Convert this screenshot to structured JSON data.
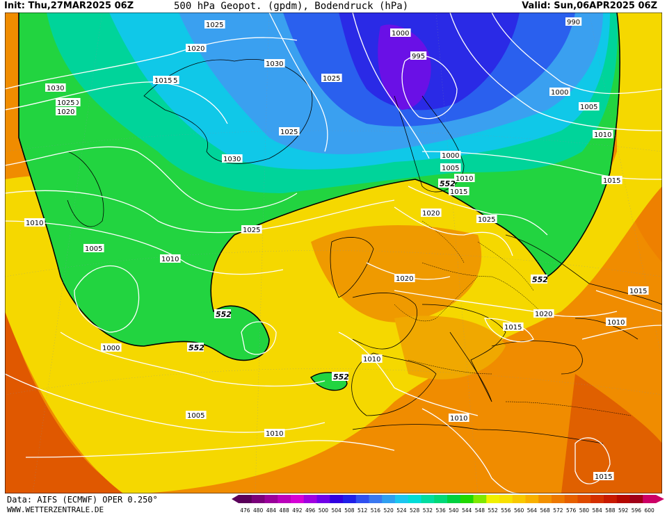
{
  "header": {
    "init": "Init: Thu,27MAR2025 06Z",
    "title": "500 hPa Geopot. (gpdm), Bodendruck (hPa)",
    "valid": "Valid: Sun,06APR2025 06Z"
  },
  "footer": {
    "data_source": "Data: AIFS (ECMWF) OPER 0.250°",
    "website": "WWW.WETTERZENTRALE.DE"
  },
  "legend": {
    "values": [
      "476",
      "480",
      "484",
      "488",
      "492",
      "496",
      "500",
      "504",
      "508",
      "512",
      "516",
      "520",
      "524",
      "528",
      "532",
      "536",
      "540",
      "544",
      "548",
      "552",
      "556",
      "560",
      "564",
      "568",
      "572",
      "576",
      "580",
      "584",
      "588",
      "592",
      "596",
      "600"
    ],
    "colors": [
      "#5a005a",
      "#7a007a",
      "#9a009a",
      "#bb00bb",
      "#d600d6",
      "#a000e0",
      "#7000e8",
      "#3000e0",
      "#2020e8",
      "#3050f0",
      "#3a78f0",
      "#2f9ff0",
      "#1cc6f0",
      "#00dcd8",
      "#00dca0",
      "#00d878",
      "#00d040",
      "#20d800",
      "#80e800",
      "#f0f000",
      "#f8e000",
      "#f8c800",
      "#f8b000",
      "#f29000",
      "#ec7800",
      "#e66000",
      "#de4a00",
      "#d43000",
      "#c81a00",
      "#b40800",
      "#a00018",
      "#cc0066"
    ]
  },
  "isobar_labels": [
    {
      "text": "1025"
    },
    {
      "text": "1020"
    },
    {
      "text": "1015"
    },
    {
      "text": "1030"
    },
    {
      "text": "1025"
    },
    {
      "text": "1020"
    },
    {
      "text": "1015"
    },
    {
      "text": "1030"
    },
    {
      "text": "1025"
    },
    {
      "text": "1025"
    },
    {
      "text": "1030"
    },
    {
      "text": "1020"
    },
    {
      "text": "1025"
    },
    {
      "text": "1000"
    },
    {
      "text": "995"
    },
    {
      "text": "990"
    },
    {
      "text": "1000"
    },
    {
      "text": "1005"
    },
    {
      "text": "1010"
    },
    {
      "text": "1000"
    },
    {
      "text": "1005"
    },
    {
      "text": "1010"
    },
    {
      "text": "1015"
    },
    {
      "text": "1015"
    },
    {
      "text": "1020"
    },
    {
      "text": "1025"
    },
    {
      "text": "1010"
    },
    {
      "text": "1005"
    },
    {
      "text": "1010"
    },
    {
      "text": "1020"
    },
    {
      "text": "1015"
    },
    {
      "text": "1020"
    },
    {
      "text": "1015"
    },
    {
      "text": "1010"
    },
    {
      "text": "1000"
    },
    {
      "text": "1010"
    },
    {
      "text": "1005"
    },
    {
      "text": "1010"
    },
    {
      "text": "1010"
    },
    {
      "text": "1015"
    }
  ],
  "height_labels": [
    {
      "text": "552"
    },
    {
      "text": "552"
    },
    {
      "text": "552"
    },
    {
      "text": "552"
    },
    {
      "text": "552"
    }
  ]
}
